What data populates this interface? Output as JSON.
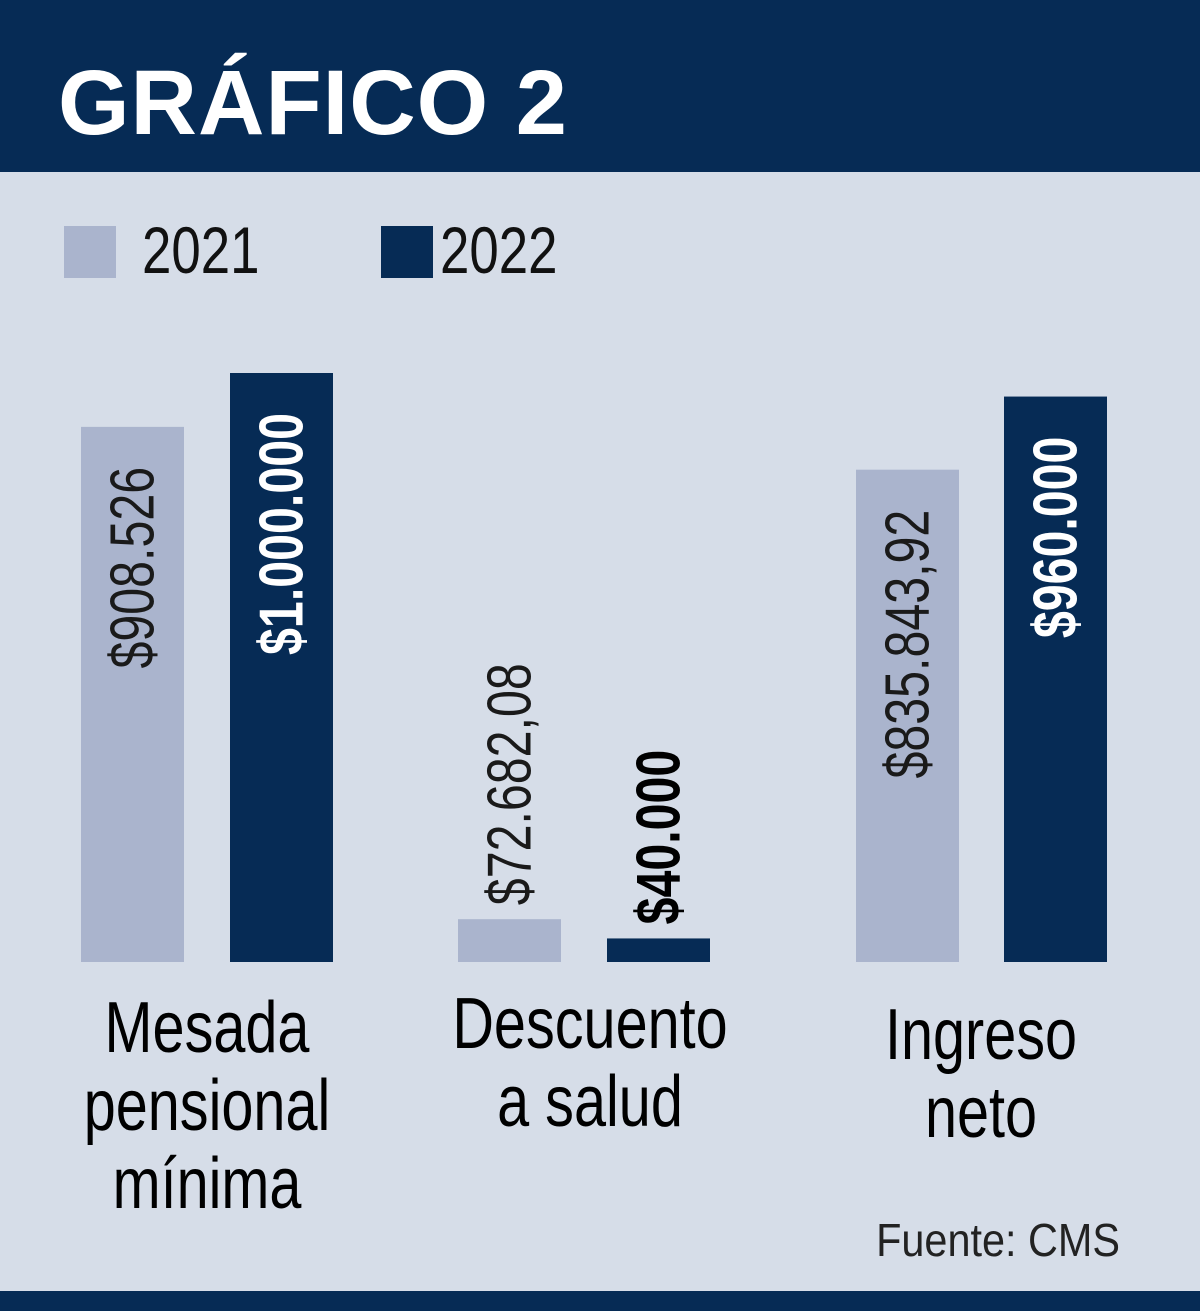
{
  "header": {
    "title": "GRÁFICO 2"
  },
  "source": "Fuente: CMS",
  "colors": {
    "header_bg": "#062b55",
    "bg": "#d6dde8",
    "series_2021": "#aab4cd",
    "series_2022": "#062b55"
  },
  "chart_data": {
    "type": "bar",
    "categories": [
      [
        "Mesada",
        "pensional",
        "mínima"
      ],
      [
        "Descuento",
        "a salud"
      ],
      [
        "Ingreso",
        "neto"
      ]
    ],
    "series": [
      {
        "name": "2021",
        "values": [
          908526,
          72682.08,
          835843.92
        ],
        "labels": [
          "$908.526",
          "$72.682,08",
          "$835.843,92"
        ]
      },
      {
        "name": "2022",
        "values": [
          1000000,
          40000,
          960000
        ],
        "labels": [
          "$1.000.000",
          "$40.000",
          "$960.000"
        ]
      }
    ],
    "legend": "top-left",
    "grid": false
  }
}
